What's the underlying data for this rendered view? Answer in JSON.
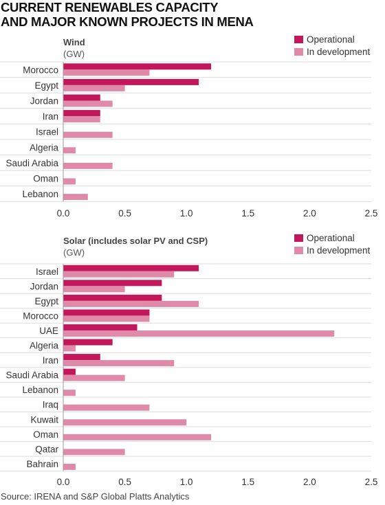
{
  "title_lines": [
    "CURRENT RENEWABLES CAPACITY",
    "AND MAJOR KNOWN PROJECTS IN MENA"
  ],
  "source": "Source: IRENA and S&P Global  Platts Analytics",
  "colors": {
    "operational": "#C2185B",
    "development": "#E08AAA",
    "grid": "#dddddd",
    "axis_text": "#333333"
  },
  "chart_data": [
    {
      "type": "bar",
      "orientation": "horizontal",
      "title": "Wind",
      "unit": "(GW)",
      "categories": [
        "Morocco",
        "Egypt",
        "Jordan",
        "Iran",
        "Israel",
        "Algeria",
        "Saudi Arabia",
        "Oman",
        "Lebanon"
      ],
      "series": [
        {
          "name": "Operational",
          "values": [
            1.2,
            1.1,
            0.3,
            0.3,
            0,
            0,
            0,
            0,
            0
          ]
        },
        {
          "name": "In development",
          "values": [
            0.7,
            0.5,
            0.4,
            0.3,
            0.4,
            0.1,
            0.4,
            0.1,
            0.2
          ]
        }
      ],
      "xlim": [
        0,
        2.5
      ],
      "ticks": [
        "0.0",
        "0.5",
        "1.0",
        "1.5",
        "2.0",
        "2.5"
      ],
      "legend": "top-right",
      "grid": "horizontal row separators"
    },
    {
      "type": "bar",
      "orientation": "horizontal",
      "title": "Solar (includes solar PV and CSP)",
      "unit": "(GW)",
      "categories": [
        "Israel",
        "Jordan",
        "Egypt",
        "Morocco",
        "UAE",
        "Algeria",
        "Iran",
        "Saudi Arabia",
        "Lebanon",
        "Iraq",
        "Kuwait",
        "Oman",
        "Qatar",
        "Bahrain"
      ],
      "series": [
        {
          "name": "Operational",
          "values": [
            1.1,
            0.8,
            0.8,
            0.7,
            0.6,
            0.4,
            0.3,
            0.1,
            0,
            0,
            0,
            0,
            0,
            0
          ]
        },
        {
          "name": "In development",
          "values": [
            0.9,
            0.5,
            1.1,
            0.7,
            2.2,
            0.1,
            0.9,
            0.5,
            0.1,
            0.7,
            1.0,
            1.2,
            0.5,
            0.1
          ]
        }
      ],
      "xlim": [
        0,
        2.5
      ],
      "ticks": [
        "0.0",
        "0.5",
        "1.0",
        "1.5",
        "2.0",
        "2.5"
      ],
      "legend": "top-right",
      "grid": "horizontal row separators"
    }
  ]
}
